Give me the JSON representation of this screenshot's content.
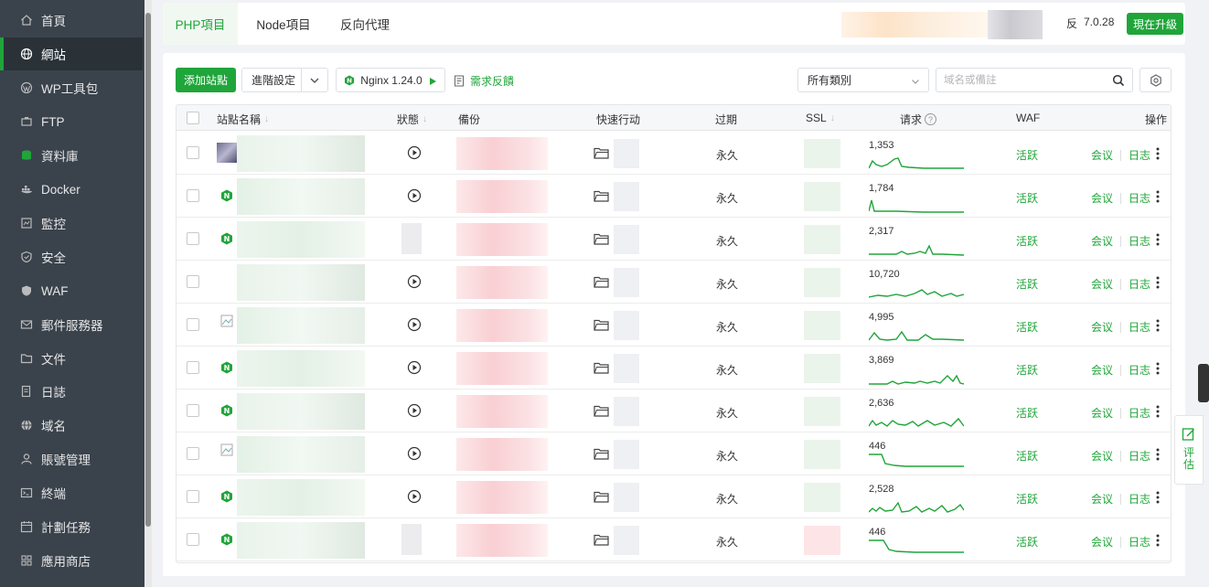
{
  "sidebar": {
    "items": [
      {
        "label": "首頁",
        "icon": "home-icon"
      },
      {
        "label": "網站",
        "icon": "globe-icon",
        "active": true
      },
      {
        "label": "WP工具包",
        "icon": "wordpress-icon"
      },
      {
        "label": "FTP",
        "icon": "ftp-icon"
      },
      {
        "label": "資料庫",
        "icon": "database-icon"
      },
      {
        "label": "Docker",
        "icon": "docker-icon"
      },
      {
        "label": "監控",
        "icon": "monitor-icon"
      },
      {
        "label": "安全",
        "icon": "shield-icon"
      },
      {
        "label": "WAF",
        "icon": "waf-shield-icon"
      },
      {
        "label": "郵件服務器",
        "icon": "mail-icon"
      },
      {
        "label": "文件",
        "icon": "folder-icon"
      },
      {
        "label": "日誌",
        "icon": "log-icon"
      },
      {
        "label": "域名",
        "icon": "domain-icon"
      },
      {
        "label": "賬號管理",
        "icon": "user-icon"
      },
      {
        "label": "終端",
        "icon": "terminal-icon"
      },
      {
        "label": "計劃任務",
        "icon": "calendar-icon"
      },
      {
        "label": "應用商店",
        "icon": "apps-icon"
      }
    ]
  },
  "tabs": [
    {
      "label": "PHP項目",
      "active": true
    },
    {
      "label": "Node項目"
    },
    {
      "label": "反向代理"
    }
  ],
  "header": {
    "version_prefix": "反",
    "version": "7.0.28",
    "upgrade_label": "現在升級"
  },
  "toolbar": {
    "add_site": "添加站點",
    "advanced": "進階設定",
    "nginx": "Nginx 1.24.0",
    "feedback": "需求反饋",
    "category": "所有類別",
    "search_placeholder": "域名或備註"
  },
  "table": {
    "columns": {
      "name": "站點名稱",
      "status": "狀態",
      "backup": "備份",
      "quick": "快速行动",
      "expire": "过期",
      "ssl": "SSL",
      "requests": "请求",
      "waf": "WAF",
      "ops": "操作"
    },
    "rows": [
      {
        "expire": "永久",
        "requests": "1,353",
        "waf": "活跃",
        "op1": "会议",
        "op2": "日志",
        "badge": "image",
        "play": true
      },
      {
        "expire": "永久",
        "requests": "1,784",
        "waf": "活跃",
        "op1": "会议",
        "op2": "日志",
        "badge": "nginx",
        "play": true
      },
      {
        "expire": "永久",
        "requests": "2,317",
        "waf": "活跃",
        "op1": "会议",
        "op2": "日志",
        "badge": "nginx",
        "play": false
      },
      {
        "expire": "永久",
        "requests": "10,720",
        "waf": "活跃",
        "op1": "会议",
        "op2": "日志",
        "badge": "none",
        "play": true
      },
      {
        "expire": "永久",
        "requests": "4,995",
        "waf": "活跃",
        "op1": "会议",
        "op2": "日志",
        "badge": "broken",
        "play": true
      },
      {
        "expire": "永久",
        "requests": "3,869",
        "waf": "活跃",
        "op1": "会议",
        "op2": "日志",
        "badge": "nginx",
        "play": true
      },
      {
        "expire": "永久",
        "requests": "2,636",
        "waf": "活跃",
        "op1": "会议",
        "op2": "日志",
        "badge": "nginx",
        "play": true
      },
      {
        "expire": "永久",
        "requests": "446",
        "waf": "活跃",
        "op1": "会议",
        "op2": "日志",
        "badge": "broken",
        "play": true
      },
      {
        "expire": "永久",
        "requests": "2,528",
        "waf": "活跃",
        "op1": "会议",
        "op2": "日志",
        "badge": "nginx",
        "play": true
      },
      {
        "expire": "永久",
        "requests": "446",
        "waf": "活跃",
        "op1": "会议",
        "op2": "日志",
        "badge": "nginx",
        "play": false
      }
    ]
  },
  "float": {
    "eval_label": "评估"
  },
  "colors": {
    "accent": "#20a53a",
    "sidebar": "#3a434c"
  }
}
